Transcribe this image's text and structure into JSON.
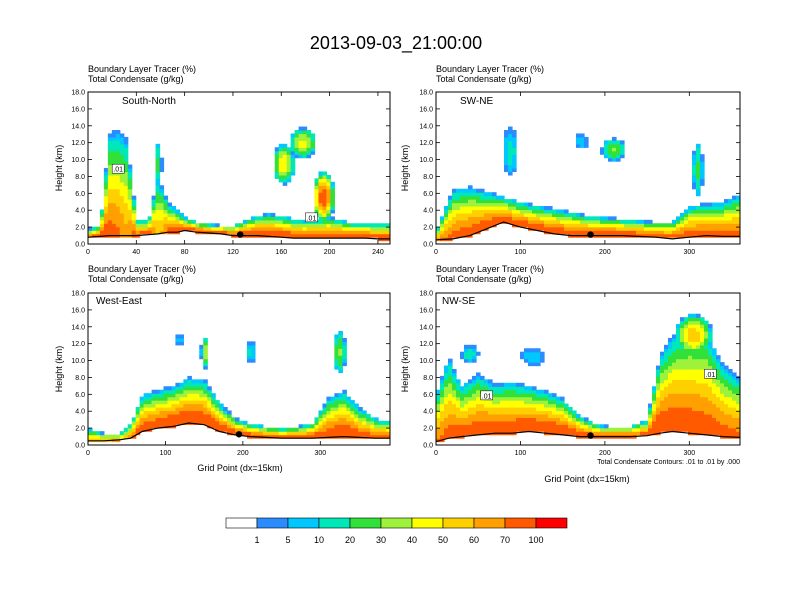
{
  "chart_data": {
    "type": "heatmap",
    "title": "2013-09-03_21:00:00",
    "color_levels": {
      "colors": [
        "#ffffff",
        "#2b8cff",
        "#00c8ff",
        "#00e8b8",
        "#32e03a",
        "#9ff23a",
        "#ffff00",
        "#ffd000",
        "#ffa000",
        "#ff5a00",
        "#ff0000"
      ],
      "labels": [
        "1",
        "5",
        "10",
        "20",
        "30",
        "40",
        "50",
        "60",
        "70",
        "100"
      ]
    },
    "contour_note": "Total Condensate Contours: .01 to .01 by .000",
    "contour_label": ".01",
    "panels": [
      {
        "name": "South-North",
        "subtitle_line1": "Boundary Layer Tracer   (%)",
        "subtitle_line2": "Total Condensate   (g/kg)",
        "ylabel": "Height (km)",
        "xlabel": "",
        "xlim": [
          0,
          250
        ],
        "ylim": [
          0,
          18
        ],
        "xticks": [
          "0",
          "40",
          "80",
          "120",
          "160",
          "200",
          "240"
        ],
        "yticks": [
          "0.0",
          "2.0",
          "4.0",
          "6.0",
          "8.0",
          "10.0",
          "12.0",
          "14.0",
          "16.0",
          "18.0"
        ],
        "marker_x": 126,
        "contour_labels_x": [
          25,
          185
        ],
        "profile": [
          {
            "x": 0,
            "terrain": 0.8,
            "top": 1.8,
            "max": 72
          },
          {
            "x": 10,
            "terrain": 0.9,
            "top": 2.2,
            "max": 78
          },
          {
            "x": 18,
            "terrain": 1.0,
            "top": 13.2,
            "max": 74
          },
          {
            "x": 24,
            "terrain": 1.0,
            "top": 13.5,
            "max": 72
          },
          {
            "x": 32,
            "terrain": 1.0,
            "top": 12.5,
            "max": 62
          },
          {
            "x": 40,
            "terrain": 1.0,
            "top": 3.0,
            "max": 76
          },
          {
            "x": 50,
            "terrain": 1.1,
            "top": 2.8,
            "max": 80
          },
          {
            "x": 58,
            "terrain": 1.2,
            "top": 8.0,
            "max": 55
          },
          {
            "x": 66,
            "terrain": 1.4,
            "top": 5.0,
            "max": 72
          },
          {
            "x": 74,
            "terrain": 1.4,
            "top": 4.0,
            "max": 80
          },
          {
            "x": 80,
            "terrain": 1.6,
            "top": 3.2,
            "max": 82
          },
          {
            "x": 90,
            "terrain": 1.4,
            "top": 2.6,
            "max": 85
          },
          {
            "x": 100,
            "terrain": 1.3,
            "top": 2.4,
            "max": 85
          },
          {
            "x": 110,
            "terrain": 1.2,
            "top": 2.2,
            "max": 85
          },
          {
            "x": 120,
            "terrain": 1.0,
            "top": 2.2,
            "max": 85
          },
          {
            "x": 130,
            "terrain": 1.0,
            "top": 2.8,
            "max": 84
          },
          {
            "x": 140,
            "terrain": 1.0,
            "top": 3.4,
            "max": 84
          },
          {
            "x": 150,
            "terrain": 0.9,
            "top": 3.6,
            "max": 84
          },
          {
            "x": 160,
            "terrain": 0.8,
            "top": 3.4,
            "max": 84
          },
          {
            "x": 170,
            "terrain": 0.7,
            "top": 3.0,
            "max": 84
          },
          {
            "x": 180,
            "terrain": 0.7,
            "top": 2.8,
            "max": 84
          },
          {
            "x": 190,
            "terrain": 0.7,
            "top": 3.0,
            "max": 84
          },
          {
            "x": 200,
            "terrain": 0.7,
            "top": 3.2,
            "max": 84
          },
          {
            "x": 210,
            "terrain": 0.7,
            "top": 2.8,
            "max": 84
          },
          {
            "x": 220,
            "terrain": 0.7,
            "top": 2.5,
            "max": 84
          },
          {
            "x": 230,
            "terrain": 0.7,
            "top": 2.5,
            "max": 84
          },
          {
            "x": 240,
            "terrain": 0.6,
            "top": 2.5,
            "max": 84
          },
          {
            "x": 250,
            "terrain": 0.6,
            "top": 2.5,
            "max": 84
          }
        ],
        "blobs": [
          {
            "x": 162,
            "z": 9.5,
            "rx": 9,
            "rz": 2.4,
            "max": 48
          },
          {
            "x": 178,
            "z": 12.0,
            "rx": 11,
            "rz": 1.8,
            "max": 42
          },
          {
            "x": 195,
            "z": 5.6,
            "rx": 9,
            "rz": 3.0,
            "max": 80
          },
          {
            "x": 58,
            "z": 9.5,
            "rx": 3,
            "rz": 2.5,
            "max": 22
          }
        ]
      },
      {
        "name": "SW-NE",
        "subtitle_line1": "Boundary Layer Tracer   (%)",
        "subtitle_line2": "Total Condensate   (g/kg)",
        "ylabel": "Height (km)",
        "xlabel": "",
        "xlim": [
          0,
          360
        ],
        "ylim": [
          0,
          18
        ],
        "xticks": [
          "0",
          "100",
          "200",
          "300"
        ],
        "yticks": [
          "0.0",
          "2.0",
          "4.0",
          "6.0",
          "8.0",
          "10.0",
          "12.0",
          "14.0",
          "16.0",
          "18.0"
        ],
        "marker_x": 183,
        "contour_labels_x": [],
        "profile": [
          {
            "x": 0,
            "terrain": 0.5,
            "top": 1.5,
            "max": 70
          },
          {
            "x": 20,
            "terrain": 0.6,
            "top": 6.5,
            "max": 74
          },
          {
            "x": 40,
            "terrain": 1.0,
            "top": 6.8,
            "max": 78
          },
          {
            "x": 60,
            "terrain": 1.8,
            "top": 6.2,
            "max": 80
          },
          {
            "x": 80,
            "terrain": 2.6,
            "top": 5.6,
            "max": 82
          },
          {
            "x": 100,
            "terrain": 2.0,
            "top": 5.0,
            "max": 82
          },
          {
            "x": 120,
            "terrain": 1.6,
            "top": 4.6,
            "max": 82
          },
          {
            "x": 140,
            "terrain": 1.2,
            "top": 4.2,
            "max": 82
          },
          {
            "x": 160,
            "terrain": 1.0,
            "top": 3.8,
            "max": 82
          },
          {
            "x": 180,
            "terrain": 1.0,
            "top": 3.4,
            "max": 82
          },
          {
            "x": 200,
            "terrain": 1.0,
            "top": 3.2,
            "max": 82
          },
          {
            "x": 220,
            "terrain": 1.0,
            "top": 3.0,
            "max": 82
          },
          {
            "x": 240,
            "terrain": 0.9,
            "top": 2.8,
            "max": 82
          },
          {
            "x": 260,
            "terrain": 0.8,
            "top": 2.6,
            "max": 80
          },
          {
            "x": 280,
            "terrain": 0.6,
            "top": 2.6,
            "max": 80
          },
          {
            "x": 300,
            "terrain": 0.8,
            "top": 4.5,
            "max": 80
          },
          {
            "x": 320,
            "terrain": 1.0,
            "top": 4.8,
            "max": 76
          },
          {
            "x": 340,
            "terrain": 0.9,
            "top": 5.0,
            "max": 78
          },
          {
            "x": 360,
            "terrain": 0.9,
            "top": 6.0,
            "max": 74
          }
        ],
        "blobs": [
          {
            "x": 210,
            "z": 11.2,
            "rx": 14,
            "rz": 1.3,
            "max": 30
          },
          {
            "x": 88,
            "z": 11.0,
            "rx": 9,
            "rz": 2.8,
            "max": 12
          },
          {
            "x": 172,
            "z": 12.2,
            "rx": 8,
            "rz": 0.8,
            "max": 8
          },
          {
            "x": 310,
            "z": 8.8,
            "rx": 6,
            "rz": 3.2,
            "max": 22
          }
        ]
      },
      {
        "name": "West-East",
        "subtitle_line1": "Boundary Layer Tracer   (%)",
        "subtitle_line2": "Total Condensate   (g/kg)",
        "ylabel": "Height (km)",
        "xlabel": "Grid Point (dx=15km)",
        "xlim": [
          0,
          390
        ],
        "ylim": [
          0,
          18
        ],
        "xticks": [
          "0",
          "100",
          "200",
          "300"
        ],
        "yticks": [
          "0.0",
          "2.0",
          "4.0",
          "6.0",
          "8.0",
          "10.0",
          "12.0",
          "14.0",
          "16.0",
          "18.0"
        ],
        "marker_x": 195,
        "contour_labels_x": [],
        "profile": [
          {
            "x": 0,
            "terrain": 0.5,
            "top": 2.0,
            "max": 60
          },
          {
            "x": 20,
            "terrain": 0.5,
            "top": 1.4,
            "max": 60
          },
          {
            "x": 40,
            "terrain": 0.6,
            "top": 1.3,
            "max": 62
          },
          {
            "x": 55,
            "terrain": 0.8,
            "top": 2.5,
            "max": 70
          },
          {
            "x": 70,
            "terrain": 1.6,
            "top": 6.0,
            "max": 80
          },
          {
            "x": 90,
            "terrain": 2.0,
            "top": 6.5,
            "max": 82
          },
          {
            "x": 110,
            "terrain": 2.2,
            "top": 7.0,
            "max": 84
          },
          {
            "x": 130,
            "terrain": 2.6,
            "top": 8.0,
            "max": 84
          },
          {
            "x": 150,
            "terrain": 2.4,
            "top": 7.8,
            "max": 84
          },
          {
            "x": 170,
            "terrain": 1.6,
            "top": 5.0,
            "max": 84
          },
          {
            "x": 190,
            "terrain": 1.2,
            "top": 3.2,
            "max": 84
          },
          {
            "x": 210,
            "terrain": 1.0,
            "top": 2.5,
            "max": 82
          },
          {
            "x": 230,
            "terrain": 0.9,
            "top": 2.2,
            "max": 80
          },
          {
            "x": 250,
            "terrain": 0.8,
            "top": 2.0,
            "max": 80
          },
          {
            "x": 270,
            "terrain": 0.8,
            "top": 2.2,
            "max": 80
          },
          {
            "x": 290,
            "terrain": 0.8,
            "top": 2.6,
            "max": 80
          },
          {
            "x": 310,
            "terrain": 0.9,
            "top": 5.5,
            "max": 80
          },
          {
            "x": 330,
            "terrain": 1.0,
            "top": 6.5,
            "max": 82
          },
          {
            "x": 350,
            "terrain": 0.9,
            "top": 4.5,
            "max": 80
          },
          {
            "x": 370,
            "terrain": 0.8,
            "top": 3.2,
            "max": 78
          },
          {
            "x": 390,
            "terrain": 0.8,
            "top": 2.8,
            "max": 76
          }
        ],
        "blobs": [
          {
            "x": 150,
            "z": 11.0,
            "rx": 4,
            "rz": 2.0,
            "max": 40
          },
          {
            "x": 210,
            "z": 11.0,
            "rx": 6,
            "rz": 1.3,
            "max": 12
          },
          {
            "x": 118,
            "z": 12.5,
            "rx": 4,
            "rz": 0.6,
            "max": 8
          },
          {
            "x": 325,
            "z": 11.0,
            "rx": 8,
            "rz": 2.5,
            "max": 30
          }
        ]
      },
      {
        "name": "NW-SE",
        "subtitle_line1": "Boundary Layer Tracer   (%)",
        "subtitle_line2": "Total Condensate   (g/kg)",
        "ylabel": "Height (km)",
        "xlabel": "Grid Point (dx=15km)",
        "xlim": [
          0,
          360
        ],
        "ylim": [
          0,
          18
        ],
        "xticks": [
          "0",
          "100",
          "200",
          "300"
        ],
        "yticks": [
          "0.0",
          "2.0",
          "4.0",
          "6.0",
          "8.0",
          "10.0",
          "12.0",
          "14.0",
          "16.0",
          "18.0"
        ],
        "marker_x": 183,
        "contour_labels_x": [
          60,
          325
        ],
        "profile": [
          {
            "x": 0,
            "terrain": 0.4,
            "top": 6.0,
            "max": 70
          },
          {
            "x": 15,
            "terrain": 0.8,
            "top": 10.5,
            "max": 74
          },
          {
            "x": 30,
            "terrain": 1.0,
            "top": 7.0,
            "max": 78
          },
          {
            "x": 50,
            "terrain": 1.2,
            "top": 8.5,
            "max": 80
          },
          {
            "x": 70,
            "terrain": 1.4,
            "top": 7.2,
            "max": 82
          },
          {
            "x": 90,
            "terrain": 1.4,
            "top": 7.5,
            "max": 82
          },
          {
            "x": 110,
            "terrain": 1.6,
            "top": 7.0,
            "max": 84
          },
          {
            "x": 130,
            "terrain": 1.4,
            "top": 6.5,
            "max": 84
          },
          {
            "x": 150,
            "terrain": 1.2,
            "top": 5.5,
            "max": 84
          },
          {
            "x": 170,
            "terrain": 1.0,
            "top": 3.5,
            "max": 82
          },
          {
            "x": 190,
            "terrain": 1.0,
            "top": 2.4,
            "max": 80
          },
          {
            "x": 210,
            "terrain": 1.0,
            "top": 2.2,
            "max": 80
          },
          {
            "x": 230,
            "terrain": 1.0,
            "top": 2.2,
            "max": 80
          },
          {
            "x": 250,
            "terrain": 1.1,
            "top": 3.0,
            "max": 80
          },
          {
            "x": 265,
            "terrain": 1.4,
            "top": 10.5,
            "max": 82
          },
          {
            "x": 280,
            "terrain": 1.6,
            "top": 13.0,
            "max": 82
          },
          {
            "x": 300,
            "terrain": 1.4,
            "top": 14.0,
            "max": 80
          },
          {
            "x": 320,
            "terrain": 1.2,
            "top": 13.5,
            "max": 78
          },
          {
            "x": 340,
            "terrain": 1.0,
            "top": 9.5,
            "max": 76
          },
          {
            "x": 360,
            "terrain": 0.9,
            "top": 8.0,
            "max": 72
          }
        ],
        "blobs": [
          {
            "x": 305,
            "z": 13.0,
            "rx": 22,
            "rz": 2.5,
            "max": 56
          },
          {
            "x": 115,
            "z": 10.5,
            "rx": 14,
            "rz": 1.0,
            "max": 8
          },
          {
            "x": 40,
            "z": 10.8,
            "rx": 10,
            "rz": 1.0,
            "max": 14
          }
        ]
      }
    ]
  }
}
